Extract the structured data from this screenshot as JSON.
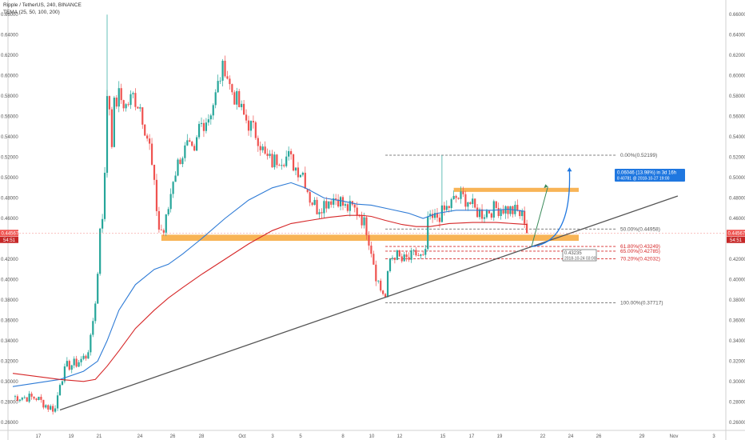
{
  "header": {
    "symbol_line": "Ripple / TetherUS, 240, BINANCE",
    "indicator_line": "TEMA (25, 50, 100, 200)"
  },
  "price_badges": {
    "last_price": "0.44567",
    "countdown": "54:51"
  },
  "colors": {
    "bull": "#26a69a",
    "bear": "#ef5350",
    "tema_blue": "#2e7bd6",
    "tema_red": "#d62728",
    "zone": "#f7a738",
    "trendline": "#555555",
    "projection_green": "#3a8a5a",
    "projection_blue": "#1f77e0",
    "fib_gray": "#555555",
    "fib_red": "#d62728"
  },
  "chart_data": {
    "type": "candlestick",
    "x_tick_labels": [
      "17",
      "19",
      "21",
      "24",
      "26",
      "28",
      "Oct",
      "3",
      "5",
      "8",
      "10",
      "12",
      "15",
      "17",
      "19",
      "22",
      "24",
      "26",
      "29",
      "Nov",
      "3"
    ],
    "y_tick_labels": [
      "0.66000",
      "0.64000",
      "0.62000",
      "0.60000",
      "0.58000",
      "0.56000",
      "0.54000",
      "0.52000",
      "0.50000",
      "0.48000",
      "0.46000",
      "0.44000",
      "0.42000",
      "0.40000",
      "0.38000",
      "0.36000",
      "0.34000",
      "0.32000",
      "0.30000",
      "0.28000",
      "0.26000"
    ],
    "y_ticks": [
      0.66,
      0.64,
      0.62,
      0.6,
      0.58,
      0.56,
      0.54,
      0.52,
      0.5,
      0.48,
      0.46,
      0.44,
      0.42,
      0.4,
      0.38,
      0.36,
      0.34,
      0.32,
      0.3,
      0.28,
      0.26
    ],
    "ylim": [
      0.252,
      0.668
    ],
    "candle_count": 234,
    "anchors": [
      [
        0,
        0.285
      ],
      [
        10,
        0.284
      ],
      [
        15,
        0.275
      ],
      [
        18,
        0.273
      ],
      [
        20,
        0.3
      ],
      [
        23,
        0.315
      ],
      [
        27,
        0.318
      ],
      [
        31,
        0.325
      ],
      [
        33,
        0.34
      ],
      [
        35,
        0.38
      ],
      [
        37,
        0.43
      ],
      [
        39,
        0.5
      ],
      [
        41,
        0.57
      ],
      [
        43,
        0.57
      ],
      [
        45,
        0.58
      ],
      [
        48,
        0.57
      ],
      [
        51,
        0.58
      ],
      [
        54,
        0.57
      ],
      [
        56,
        0.55
      ],
      [
        58,
        0.53
      ],
      [
        60,
        0.49
      ],
      [
        62,
        0.45
      ],
      [
        64,
        0.447
      ],
      [
        66,
        0.47
      ],
      [
        68,
        0.5
      ],
      [
        71,
        0.52
      ],
      [
        74,
        0.53
      ],
      [
        77,
        0.52
      ],
      [
        79,
        0.55
      ],
      [
        83,
        0.56
      ],
      [
        86,
        0.58
      ],
      [
        88,
        0.6
      ],
      [
        90,
        0.61
      ],
      [
        92,
        0.59
      ],
      [
        95,
        0.575
      ],
      [
        98,
        0.56
      ],
      [
        101,
        0.55
      ],
      [
        104,
        0.54
      ],
      [
        107,
        0.52
      ],
      [
        110,
        0.515
      ],
      [
        113,
        0.52
      ],
      [
        117,
        0.52
      ],
      [
        120,
        0.51
      ],
      [
        123,
        0.505
      ],
      [
        126,
        0.48
      ],
      [
        129,
        0.47
      ],
      [
        132,
        0.475
      ],
      [
        135,
        0.48
      ],
      [
        138,
        0.48
      ],
      [
        141,
        0.47
      ],
      [
        144,
        0.47
      ],
      [
        147,
        0.465
      ],
      [
        150,
        0.45
      ],
      [
        152,
        0.43
      ],
      [
        154,
        0.405
      ],
      [
        156,
        0.39
      ],
      [
        158,
        0.385
      ],
      [
        160,
        0.42
      ],
      [
        162,
        0.425
      ],
      [
        165,
        0.418
      ],
      [
        168,
        0.42
      ],
      [
        171,
        0.425
      ],
      [
        174,
        0.42
      ],
      [
        175,
        0.445
      ],
      [
        176,
        0.455
      ],
      [
        179,
        0.46
      ],
      [
        182,
        0.465
      ],
      [
        185,
        0.472
      ],
      [
        188,
        0.48
      ],
      [
        191,
        0.48
      ],
      [
        193,
        0.478
      ],
      [
        196,
        0.468
      ],
      [
        199,
        0.465
      ],
      [
        202,
        0.468
      ],
      [
        205,
        0.47
      ],
      [
        208,
        0.47
      ],
      [
        211,
        0.468
      ],
      [
        214,
        0.466
      ],
      [
        217,
        0.46
      ],
      [
        218,
        0.4456
      ]
    ],
    "tema_blue": [
      [
        0,
        0.295
      ],
      [
        20,
        0.302
      ],
      [
        30,
        0.31
      ],
      [
        36,
        0.32
      ],
      [
        40,
        0.34
      ],
      [
        45,
        0.37
      ],
      [
        52,
        0.395
      ],
      [
        60,
        0.41
      ],
      [
        66,
        0.415
      ],
      [
        72,
        0.425
      ],
      [
        80,
        0.44
      ],
      [
        90,
        0.46
      ],
      [
        100,
        0.478
      ],
      [
        110,
        0.49
      ],
      [
        118,
        0.495
      ],
      [
        124,
        0.49
      ],
      [
        132,
        0.48
      ],
      [
        140,
        0.477
      ],
      [
        146,
        0.474
      ],
      [
        152,
        0.473
      ],
      [
        160,
        0.469
      ],
      [
        168,
        0.465
      ],
      [
        174,
        0.46
      ],
      [
        180,
        0.465
      ],
      [
        188,
        0.468
      ],
      [
        196,
        0.468
      ],
      [
        204,
        0.468
      ],
      [
        210,
        0.469
      ],
      [
        217,
        0.467
      ]
    ],
    "tema_red": [
      [
        0,
        0.308
      ],
      [
        20,
        0.302
      ],
      [
        30,
        0.3
      ],
      [
        35,
        0.302
      ],
      [
        40,
        0.315
      ],
      [
        45,
        0.33
      ],
      [
        52,
        0.352
      ],
      [
        60,
        0.37
      ],
      [
        66,
        0.382
      ],
      [
        72,
        0.392
      ],
      [
        80,
        0.405
      ],
      [
        90,
        0.42
      ],
      [
        100,
        0.435
      ],
      [
        110,
        0.448
      ],
      [
        118,
        0.455
      ],
      [
        126,
        0.458
      ],
      [
        134,
        0.461
      ],
      [
        142,
        0.463
      ],
      [
        148,
        0.463
      ],
      [
        152,
        0.462
      ],
      [
        158,
        0.458
      ],
      [
        165,
        0.454
      ],
      [
        171,
        0.452
      ],
      [
        177,
        0.452
      ],
      [
        185,
        0.455
      ],
      [
        195,
        0.456
      ],
      [
        205,
        0.456
      ],
      [
        212,
        0.455
      ],
      [
        218,
        0.454
      ]
    ],
    "zones": [
      {
        "from_index": 63,
        "to_index": 240,
        "from_y": 0.438,
        "to_y": 0.444
      },
      {
        "from_index": 187,
        "to_index": 240,
        "from_y": 0.486,
        "to_y": 0.49
      }
    ],
    "trendline": {
      "from_index": 20,
      "from_y": 0.272,
      "to_index": 282,
      "to_y": 0.482
    },
    "fib_levels": [
      {
        "label": "0.00%(0.52199)",
        "value": 0.52199,
        "color": "#555555"
      },
      {
        "label": "50.00%(0.44958)",
        "value": 0.44958,
        "color": "#555555"
      },
      {
        "label": "61.80%(0.43249)",
        "value": 0.43249,
        "color": "#d62728"
      },
      {
        "label": "65.00%(0.42785)",
        "value": 0.42785,
        "color": "#d62728"
      },
      {
        "label": "70.20%(0.42032)",
        "value": 0.42032,
        "color": "#d62728"
      },
      {
        "label": "100.00%(0.37717)",
        "value": 0.37717,
        "color": "#555555"
      }
    ],
    "fib_range": {
      "from_index": 158,
      "to_index": 238
    },
    "projection": {
      "start_index": 220,
      "start_y": 0.43235,
      "end_index": 232,
      "end_y": 0.4928,
      "label_line1": "0.06046 (13.98%) in 3d 16h",
      "label_line2": "8 40781 @ 2018-10-27 19:00"
    },
    "point_note": {
      "line1": "0.43235",
      "line2": "2018-10-24 03:00"
    }
  }
}
